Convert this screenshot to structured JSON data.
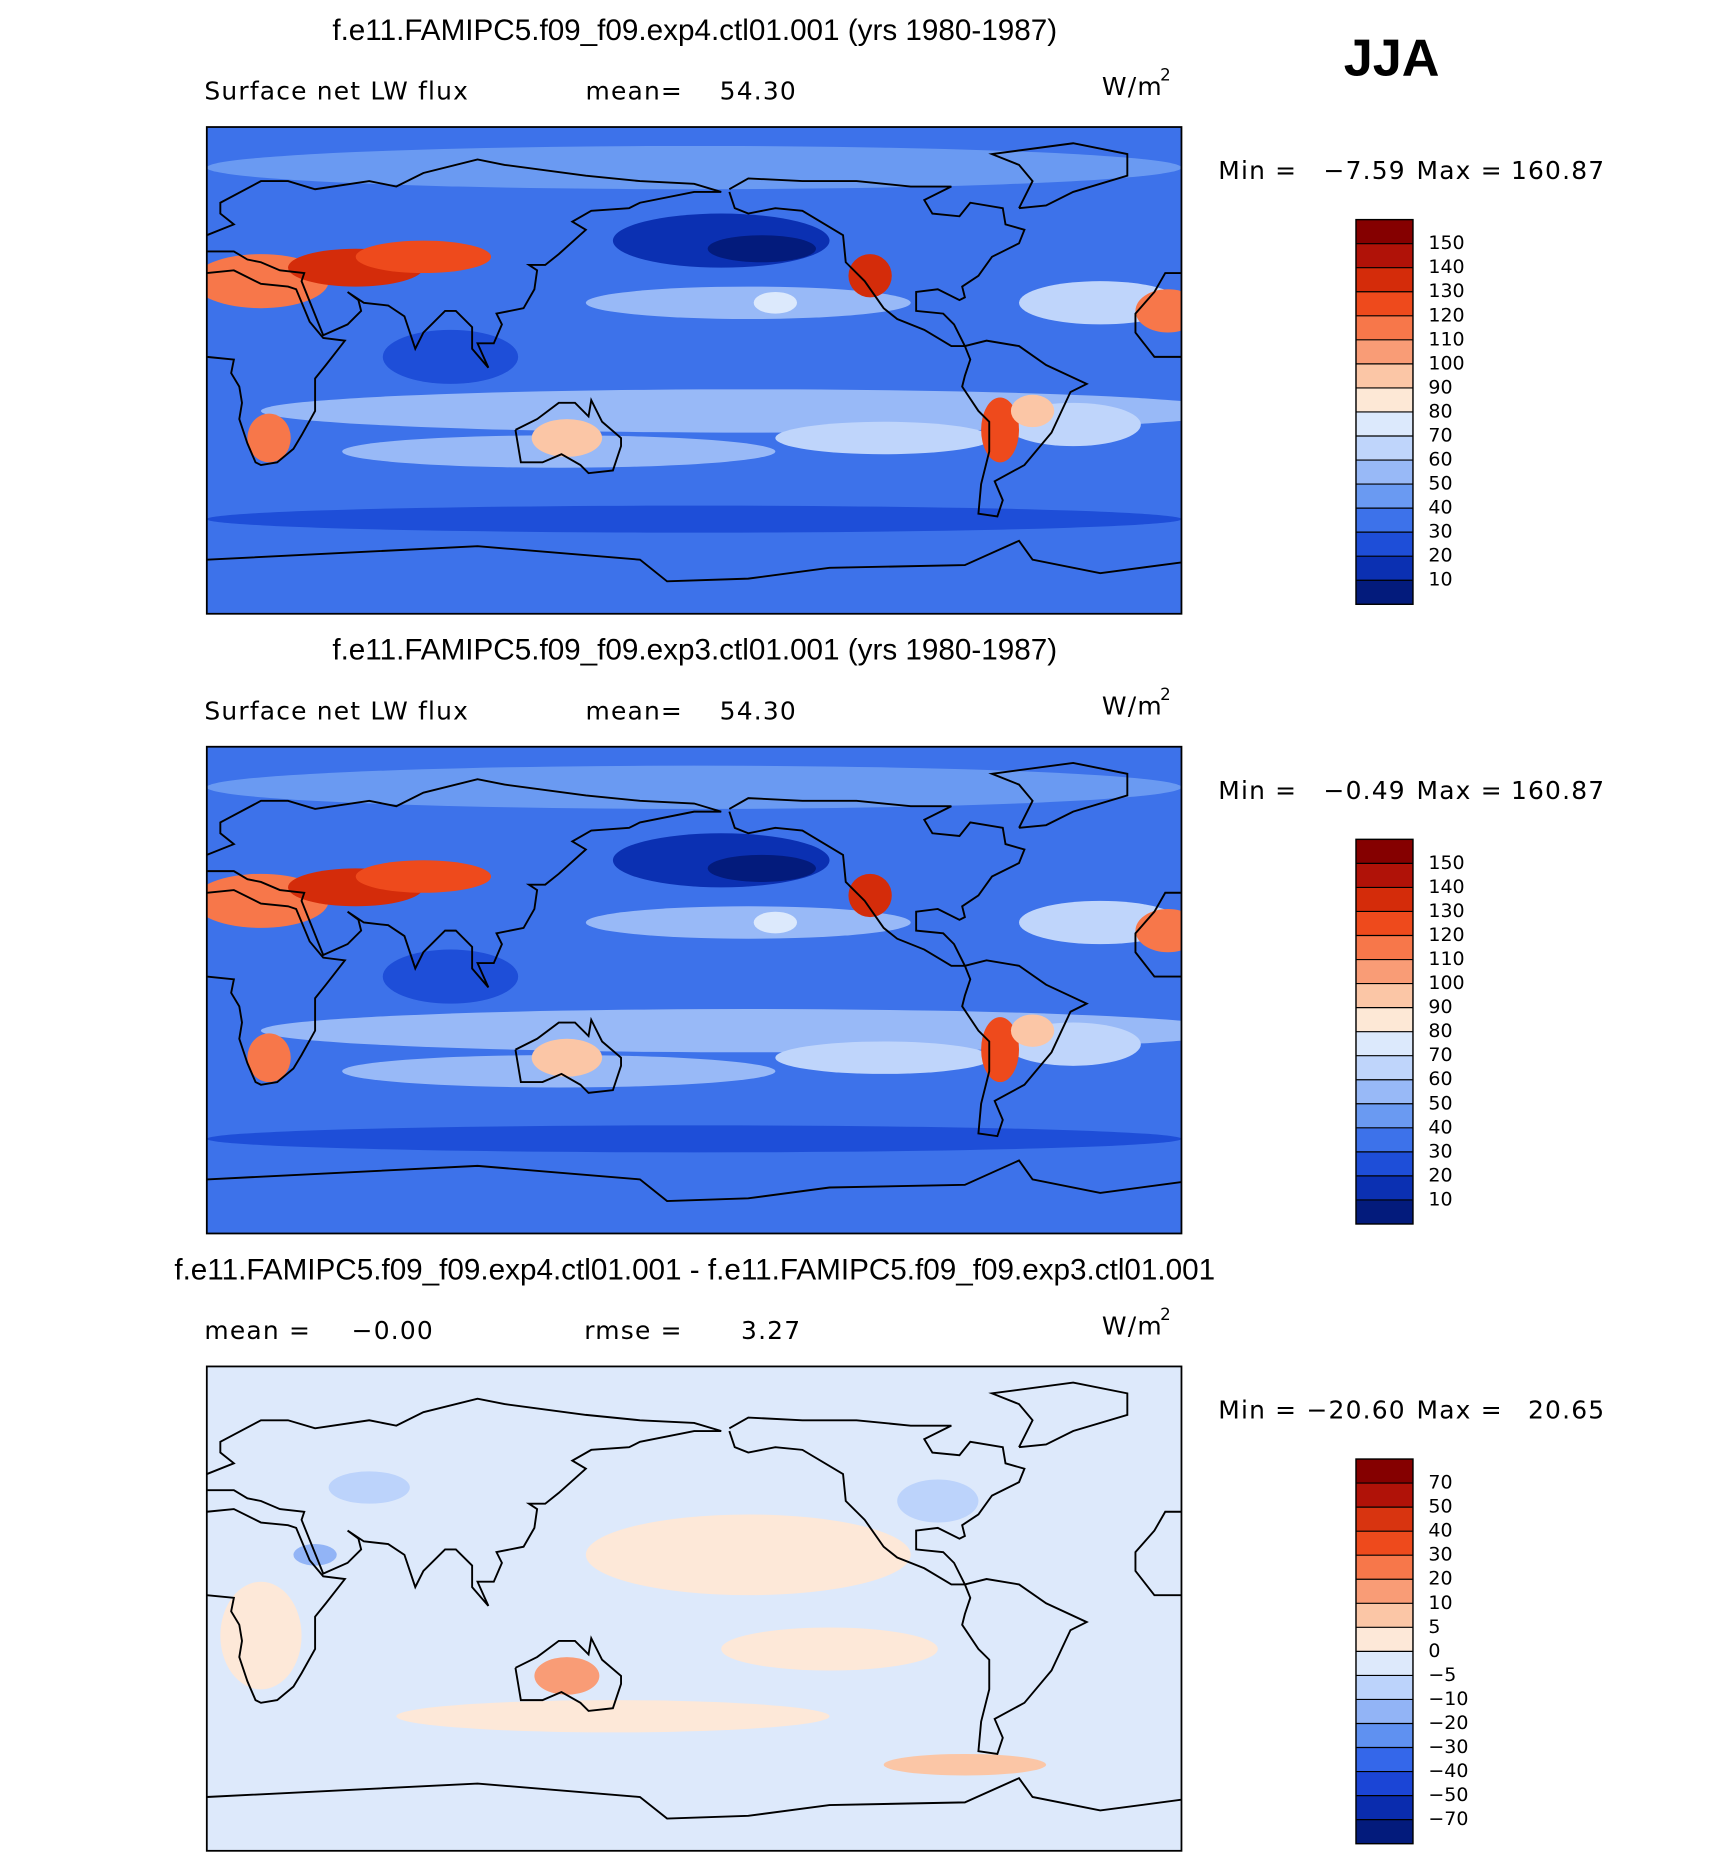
{
  "season": "JJA",
  "panels": [
    {
      "title": "f.e11.FAMIPC5.f09_f09.exp4.ctl01.001 (yrs 1980-1987)",
      "left_label": "Surface net LW flux",
      "stat1_label": "mean=",
      "stat1_value": "54.30",
      "units": "W/m",
      "units_sup": "2",
      "min_label": "Min =",
      "min": "−7.59",
      "max_label": "Max =",
      "max": "160.87",
      "colorbar": {
        "labels": [
          150,
          140,
          130,
          120,
          110,
          100,
          90,
          80,
          70,
          60,
          50,
          40,
          30,
          20,
          10
        ],
        "colors": [
          "#850000",
          "#b01208",
          "#d42c0a",
          "#ee4a1c",
          "#f7774a",
          "#f99c76",
          "#fbc6a6",
          "#fde8d6",
          "#dce9fc",
          "#bfd5fb",
          "#98b9f7",
          "#6a9af2",
          "#3d72ea",
          "#1e4ed8",
          "#0b30b2",
          "#031b7c"
        ]
      }
    },
    {
      "title": "f.e11.FAMIPC5.f09_f09.exp3.ctl01.001 (yrs 1980-1987)",
      "left_label": "Surface net LW flux",
      "stat1_label": "mean=",
      "stat1_value": "54.30",
      "units": "W/m",
      "units_sup": "2",
      "min_label": "Min =",
      "min": "−0.49",
      "max_label": "Max =",
      "max": "160.87",
      "colorbar": {
        "labels": [
          150,
          140,
          130,
          120,
          110,
          100,
          90,
          80,
          70,
          60,
          50,
          40,
          30,
          20,
          10
        ],
        "colors": [
          "#850000",
          "#b01208",
          "#d42c0a",
          "#ee4a1c",
          "#f7774a",
          "#f99c76",
          "#fbc6a6",
          "#fde8d6",
          "#dce9fc",
          "#bfd5fb",
          "#98b9f7",
          "#6a9af2",
          "#3d72ea",
          "#1e4ed8",
          "#0b30b2",
          "#031b7c"
        ]
      }
    },
    {
      "title": "f.e11.FAMIPC5.f09_f09.exp4.ctl01.001 - f.e11.FAMIPC5.f09_f09.exp3.ctl01.001",
      "stat1_label": "mean =",
      "stat1_value": "−0.00",
      "stat2_label": "rmse =",
      "stat2_value": "3.27",
      "units": "W/m",
      "units_sup": "2",
      "min_label": "Min =",
      "min": "−20.60",
      "max_label": "Max =",
      "max": "20.65",
      "colorbar": {
        "labels": [
          70,
          50,
          40,
          30,
          20,
          10,
          5,
          0,
          {
            "value": -5,
            "label": "−5"
          },
          {
            "value": -10,
            "label": "−10"
          },
          {
            "value": -20,
            "label": "−20"
          },
          {
            "value": -30,
            "label": "−30"
          },
          {
            "value": -40,
            "label": "−40"
          },
          {
            "value": -50,
            "label": "−50"
          },
          {
            "value": -70,
            "label": "−70"
          }
        ],
        "colors": [
          "#850000",
          "#b01208",
          "#d83410",
          "#ee4a1c",
          "#f7774a",
          "#f99c76",
          "#fbc6a6",
          "#fde8d8",
          "#dde9fb",
          "#bcd3fb",
          "#92b4f6",
          "#5f91f1",
          "#3467ea",
          "#1b45d6",
          "#0a2cae",
          "#031b7c"
        ]
      }
    }
  ]
}
